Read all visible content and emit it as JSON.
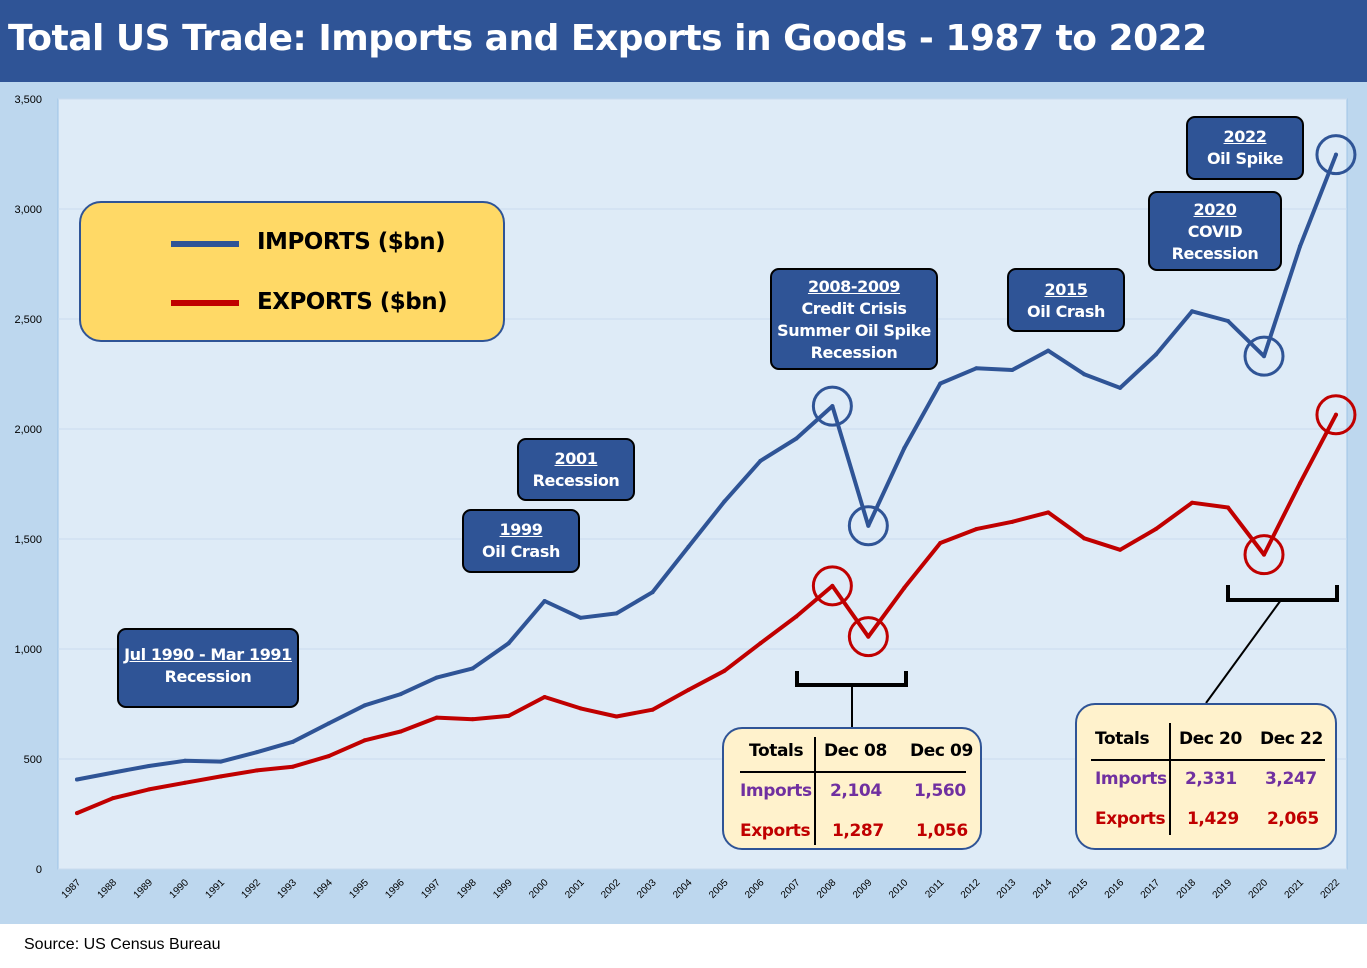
{
  "title": "Total US Trade: Imports and Exports in Goods - 1987 to 2022",
  "source": "Source: US Census Bureau",
  "colors": {
    "imports": "#2f5496",
    "exports": "#c00000",
    "header": "#2f5496",
    "plot_bg": "#deebf7"
  },
  "legend": {
    "imports_label": "IMPORTS ($bn)",
    "exports_label": "EXPORTS ($bn)"
  },
  "chart_data": {
    "type": "line",
    "title": "Total US Trade: Imports and Exports in Goods - 1987 to 2022",
    "xlabel": "",
    "ylabel": "",
    "ylim": [
      0,
      3500
    ],
    "yticks": [
      "0",
      "500",
      "1,000",
      "1,500",
      "2,000",
      "2,500",
      "3,000",
      "3,500"
    ],
    "x": [
      "1987",
      "1988",
      "1989",
      "1990",
      "1991",
      "1992",
      "1993",
      "1994",
      "1995",
      "1996",
      "1997",
      "1998",
      "1999",
      "2000",
      "2001",
      "2002",
      "2003",
      "2004",
      "2005",
      "2006",
      "2007",
      "2008",
      "2009",
      "2010",
      "2011",
      "2012",
      "2013",
      "2014",
      "2015",
      "2016",
      "2017",
      "2018",
      "2019",
      "2020",
      "2021",
      "2022"
    ],
    "series": [
      {
        "name": "IMPORTS ($bn)",
        "values": [
          407,
          438,
          468,
          492,
          488,
          531,
          578,
          662,
          744,
          795,
          870,
          912,
          1026,
          1218,
          1142,
          1162,
          1258,
          1465,
          1671,
          1855,
          1957,
          2104,
          1560,
          1913,
          2207,
          2276,
          2268,
          2356,
          2249,
          2187,
          2339,
          2535,
          2491,
          2331,
          2830,
          3247
        ]
      },
      {
        "name": "EXPORTS ($bn)",
        "values": [
          254,
          322,
          362,
          392,
          421,
          448,
          465,
          513,
          585,
          625,
          688,
          681,
          696,
          782,
          730,
          693,
          724,
          814,
          901,
          1026,
          1148,
          1287,
          1056,
          1278,
          1482,
          1545,
          1578,
          1621,
          1503,
          1451,
          1546,
          1665,
          1643,
          1429,
          1754,
          2065
        ]
      }
    ],
    "highlight_points": [
      {
        "series": "imports",
        "year": "2008",
        "value": 2104
      },
      {
        "series": "imports",
        "year": "2009",
        "value": 1560
      },
      {
        "series": "imports",
        "year": "2020",
        "value": 2331
      },
      {
        "series": "imports",
        "year": "2022",
        "value": 3247
      },
      {
        "series": "exports",
        "year": "2008",
        "value": 1287
      },
      {
        "series": "exports",
        "year": "2009",
        "value": 1056
      },
      {
        "series": "exports",
        "year": "2020",
        "value": 1429
      },
      {
        "series": "exports",
        "year": "2022",
        "value": 2065
      }
    ],
    "annotations": [
      {
        "title": "Jul 1990 - Mar 1991",
        "lines": [
          "Recession"
        ]
      },
      {
        "title": "1999",
        "lines": [
          "Oil Crash"
        ]
      },
      {
        "title": "2001",
        "lines": [
          "Recession"
        ]
      },
      {
        "title": "2008-2009",
        "lines": [
          "Credit Crisis",
          "Summer Oil Spike",
          "Recession"
        ]
      },
      {
        "title": "2015",
        "lines": [
          "Oil Crash"
        ]
      },
      {
        "title": "2020",
        "lines": [
          "COVID",
          "Recession"
        ]
      },
      {
        "title": "2022",
        "lines": [
          "Oil Spike"
        ]
      }
    ],
    "tables": [
      {
        "header": [
          "Totals",
          "Dec 08",
          "Dec 09"
        ],
        "rows": [
          [
            "Imports",
            "2,104",
            "1,560"
          ],
          [
            "Exports",
            "1,287",
            "1,056"
          ]
        ]
      },
      {
        "header": [
          "Totals",
          "Dec 20",
          "Dec 22"
        ],
        "rows": [
          [
            "Imports",
            "2,331",
            "3,247"
          ],
          [
            "Exports",
            "1,429",
            "2,065"
          ]
        ]
      }
    ]
  }
}
